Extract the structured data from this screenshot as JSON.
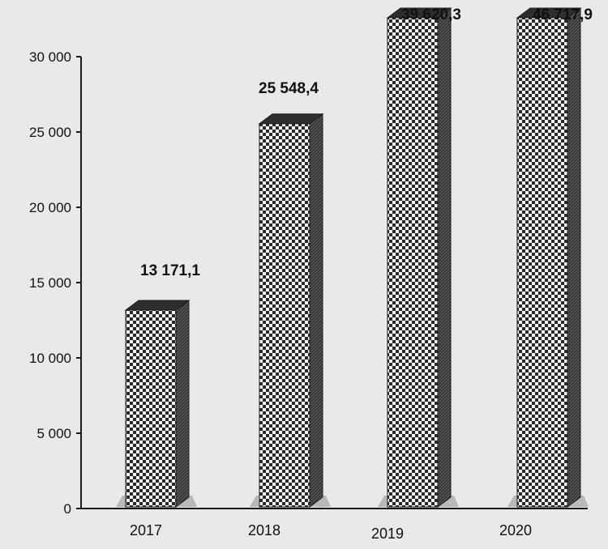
{
  "chart_data": {
    "type": "bar",
    "categories": [
      "2017",
      "2018",
      "2019",
      "2020"
    ],
    "values": [
      13171.1,
      25548.4,
      39620.3,
      46717.9
    ],
    "value_labels": [
      "13 171,1",
      "25 548,4",
      "39 620,3",
      "46 717,9"
    ],
    "title": "",
    "xlabel": "",
    "ylabel": "",
    "yticks": [
      0,
      5000,
      10000,
      15000,
      20000,
      25000,
      30000
    ],
    "ytick_labels": [
      "0",
      "5 000",
      "10 000",
      "15 000",
      "20 000",
      "25 000",
      "30 000"
    ],
    "ylim": [
      0,
      30000
    ],
    "grid": false,
    "style": "3d-checkered-columns"
  },
  "colors": {
    "background": "#e9e9e7",
    "axis": "#1a1a1a",
    "bar_side": "#4a4a4a",
    "bar_top": "#2e2e2e",
    "text": "#111111"
  }
}
